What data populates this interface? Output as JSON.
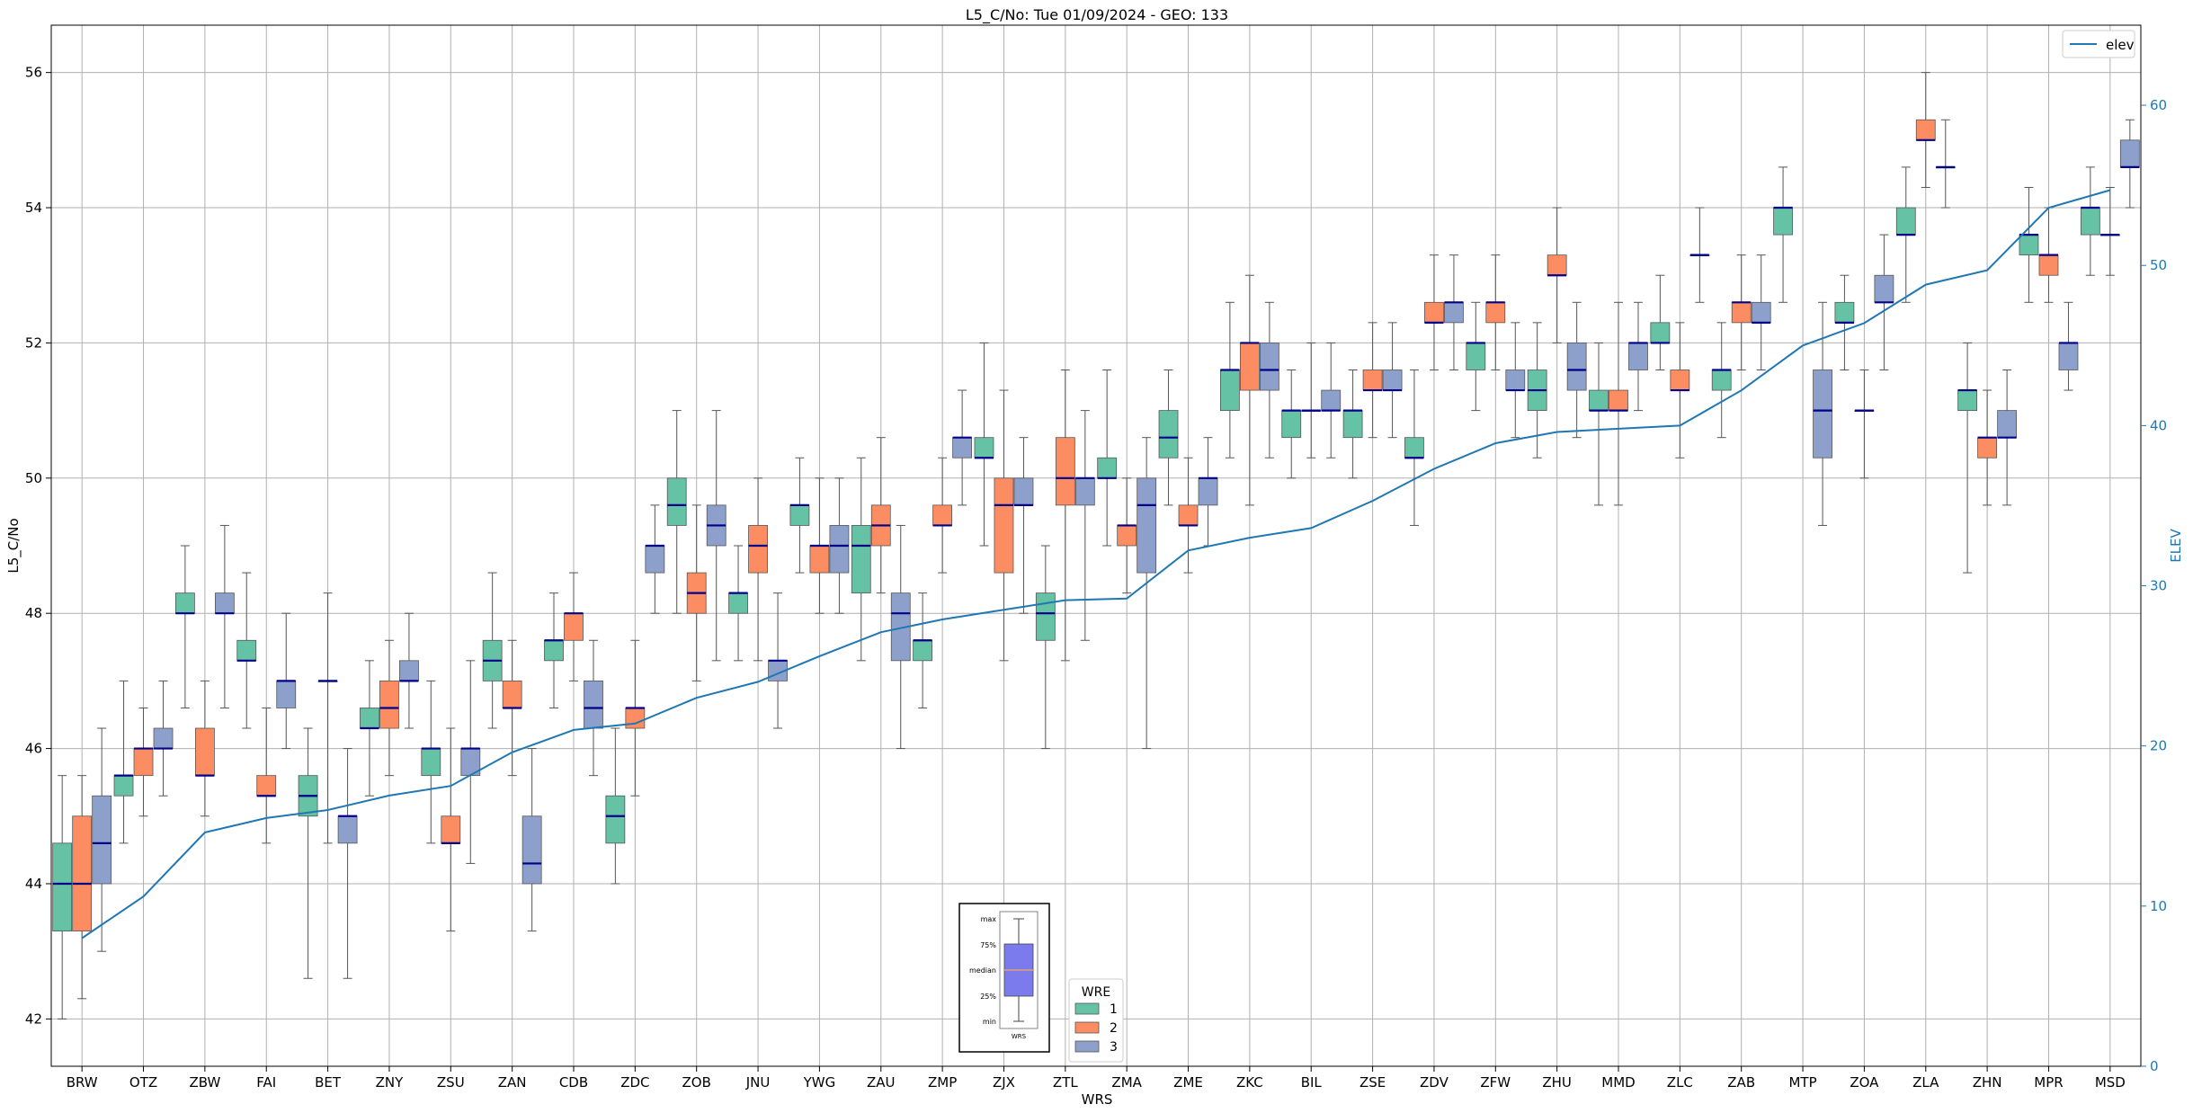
{
  "chart_data": {
    "type": "box",
    "title": "L5_C/No: Tue 01/09/2024 - GEO: 133",
    "xlabel": "WRS",
    "ylabel": "L5_C/No",
    "y2label": "ELEV",
    "ylim": [
      41.3,
      56.7
    ],
    "y2lim": [
      0,
      65
    ],
    "yticks": [
      42,
      44,
      46,
      48,
      50,
      52,
      54,
      56
    ],
    "y2ticks": [
      0,
      10,
      20,
      30,
      40,
      50,
      60
    ],
    "grid": true,
    "colors": {
      "1": "#66c2a5",
      "2": "#fc8d62",
      "3": "#8da0cb",
      "median": "#00008b",
      "elev": "#1f77b4",
      "axis2": "#1f77b4",
      "whisker": "#555555"
    },
    "categories": [
      "BRW",
      "OTZ",
      "ZBW",
      "FAI",
      "BET",
      "ZNY",
      "ZSU",
      "ZAN",
      "CDB",
      "ZDC",
      "ZOB",
      "JNU",
      "YWG",
      "ZAU",
      "ZMP",
      "ZJX",
      "ZTL",
      "ZMA",
      "ZME",
      "ZKC",
      "BIL",
      "ZSE",
      "ZDV",
      "ZFW",
      "ZHU",
      "MMD",
      "ZLC",
      "ZAB",
      "MTP",
      "ZOA",
      "ZLA",
      "ZHN",
      "MPR",
      "MSD"
    ],
    "boxes": [
      {
        "station": "BRW",
        "wre": 1,
        "min": 42.0,
        "q1": 43.3,
        "median": 44.0,
        "q3": 44.6,
        "max": 45.6
      },
      {
        "station": "BRW",
        "wre": 2,
        "min": 42.3,
        "q1": 43.3,
        "median": 44.0,
        "q3": 45.0,
        "max": 45.6
      },
      {
        "station": "BRW",
        "wre": 3,
        "min": 43.0,
        "q1": 44.0,
        "median": 44.6,
        "q3": 45.3,
        "max": 46.3
      },
      {
        "station": "OTZ",
        "wre": 1,
        "min": 44.6,
        "q1": 45.3,
        "median": 45.6,
        "q3": 45.6,
        "max": 47.0
      },
      {
        "station": "OTZ",
        "wre": 2,
        "min": 45.0,
        "q1": 45.6,
        "median": 46.0,
        "q3": 46.0,
        "max": 46.6
      },
      {
        "station": "OTZ",
        "wre": 3,
        "min": 45.3,
        "q1": 46.0,
        "median": 46.0,
        "q3": 46.3,
        "max": 47.0
      },
      {
        "station": "ZBW",
        "wre": 1,
        "min": 46.6,
        "q1": 48.0,
        "median": 48.0,
        "q3": 48.3,
        "max": 49.0
      },
      {
        "station": "ZBW",
        "wre": 2,
        "min": 45.0,
        "q1": 45.6,
        "median": 45.6,
        "q3": 46.3,
        "max": 47.0
      },
      {
        "station": "ZBW",
        "wre": 3,
        "min": 46.6,
        "q1": 48.0,
        "median": 48.0,
        "q3": 48.3,
        "max": 49.3
      },
      {
        "station": "FAI",
        "wre": 1,
        "min": 46.3,
        "q1": 47.3,
        "median": 47.3,
        "q3": 47.6,
        "max": 48.6
      },
      {
        "station": "FAI",
        "wre": 2,
        "min": 44.6,
        "q1": 45.3,
        "median": 45.3,
        "q3": 45.6,
        "max": 46.6
      },
      {
        "station": "FAI",
        "wre": 3,
        "min": 46.0,
        "q1": 46.6,
        "median": 47.0,
        "q3": 47.0,
        "max": 48.0
      },
      {
        "station": "BET",
        "wre": 1,
        "min": 42.6,
        "q1": 45.0,
        "median": 45.3,
        "q3": 45.6,
        "max": 46.3
      },
      {
        "station": "BET",
        "wre": 2,
        "min": 44.6,
        "q1": 47.0,
        "median": 47.0,
        "q3": 47.0,
        "max": 48.3
      },
      {
        "station": "BET",
        "wre": 3,
        "min": 42.6,
        "q1": 44.6,
        "median": 45.0,
        "q3": 45.0,
        "max": 46.0
      },
      {
        "station": "ZNY",
        "wre": 1,
        "min": 45.3,
        "q1": 46.3,
        "median": 46.3,
        "q3": 46.6,
        "max": 47.3
      },
      {
        "station": "ZNY",
        "wre": 2,
        "min": 45.6,
        "q1": 46.3,
        "median": 46.6,
        "q3": 47.0,
        "max": 47.6
      },
      {
        "station": "ZNY",
        "wre": 3,
        "min": 46.3,
        "q1": 47.0,
        "median": 47.0,
        "q3": 47.3,
        "max": 48.0
      },
      {
        "station": "ZSU",
        "wre": 1,
        "min": 44.6,
        "q1": 45.6,
        "median": 46.0,
        "q3": 46.0,
        "max": 47.0
      },
      {
        "station": "ZSU",
        "wre": 2,
        "min": 43.3,
        "q1": 44.6,
        "median": 44.6,
        "q3": 45.0,
        "max": 46.3
      },
      {
        "station": "ZSU",
        "wre": 3,
        "min": 44.3,
        "q1": 45.6,
        "median": 46.0,
        "q3": 46.0,
        "max": 47.3
      },
      {
        "station": "ZAN",
        "wre": 1,
        "min": 46.3,
        "q1": 47.0,
        "median": 47.3,
        "q3": 47.6,
        "max": 48.6
      },
      {
        "station": "ZAN",
        "wre": 2,
        "min": 45.6,
        "q1": 46.6,
        "median": 46.6,
        "q3": 47.0,
        "max": 47.6
      },
      {
        "station": "ZAN",
        "wre": 3,
        "min": 43.3,
        "q1": 44.0,
        "median": 44.3,
        "q3": 45.0,
        "max": 46.0
      },
      {
        "station": "CDB",
        "wre": 1,
        "min": 46.6,
        "q1": 47.3,
        "median": 47.6,
        "q3": 47.6,
        "max": 48.3
      },
      {
        "station": "CDB",
        "wre": 2,
        "min": 47.0,
        "q1": 47.6,
        "median": 48.0,
        "q3": 48.0,
        "max": 48.6
      },
      {
        "station": "CDB",
        "wre": 3,
        "min": 45.6,
        "q1": 46.3,
        "median": 46.6,
        "q3": 47.0,
        "max": 47.6
      },
      {
        "station": "ZDC",
        "wre": 1,
        "min": 44.0,
        "q1": 44.6,
        "median": 45.0,
        "q3": 45.3,
        "max": 46.3
      },
      {
        "station": "ZDC",
        "wre": 2,
        "min": 45.3,
        "q1": 46.3,
        "median": 46.6,
        "q3": 46.6,
        "max": 47.6
      },
      {
        "station": "ZDC",
        "wre": 3,
        "min": 48.0,
        "q1": 48.6,
        "median": 49.0,
        "q3": 49.0,
        "max": 49.6
      },
      {
        "station": "ZOB",
        "wre": 1,
        "min": 48.0,
        "q1": 49.3,
        "median": 49.6,
        "q3": 50.0,
        "max": 51.0
      },
      {
        "station": "ZOB",
        "wre": 2,
        "min": 47.0,
        "q1": 48.0,
        "median": 48.3,
        "q3": 48.6,
        "max": 49.6
      },
      {
        "station": "ZOB",
        "wre": 3,
        "min": 47.3,
        "q1": 49.0,
        "median": 49.3,
        "q3": 49.6,
        "max": 51.0
      },
      {
        "station": "JNU",
        "wre": 1,
        "min": 47.3,
        "q1": 48.0,
        "median": 48.3,
        "q3": 48.3,
        "max": 49.0
      },
      {
        "station": "JNU",
        "wre": 2,
        "min": 47.3,
        "q1": 48.6,
        "median": 49.0,
        "q3": 49.3,
        "max": 50.0
      },
      {
        "station": "JNU",
        "wre": 3,
        "min": 46.3,
        "q1": 47.0,
        "median": 47.3,
        "q3": 47.3,
        "max": 48.3
      },
      {
        "station": "YWG",
        "wre": 1,
        "min": 48.6,
        "q1": 49.3,
        "median": 49.6,
        "q3": 49.6,
        "max": 50.3
      },
      {
        "station": "YWG",
        "wre": 2,
        "min": 48.0,
        "q1": 48.6,
        "median": 49.0,
        "q3": 49.0,
        "max": 50.0
      },
      {
        "station": "YWG",
        "wre": 3,
        "min": 48.0,
        "q1": 48.6,
        "median": 49.0,
        "q3": 49.3,
        "max": 50.0
      },
      {
        "station": "ZAU",
        "wre": 1,
        "min": 47.3,
        "q1": 48.3,
        "median": 49.0,
        "q3": 49.3,
        "max": 50.3
      },
      {
        "station": "ZAU",
        "wre": 2,
        "min": 48.3,
        "q1": 49.0,
        "median": 49.3,
        "q3": 49.6,
        "max": 50.6
      },
      {
        "station": "ZAU",
        "wre": 3,
        "min": 46.0,
        "q1": 47.3,
        "median": 48.0,
        "q3": 48.3,
        "max": 49.3
      },
      {
        "station": "ZMP",
        "wre": 1,
        "min": 46.6,
        "q1": 47.3,
        "median": 47.6,
        "q3": 47.6,
        "max": 48.3
      },
      {
        "station": "ZMP",
        "wre": 2,
        "min": 48.6,
        "q1": 49.3,
        "median": 49.3,
        "q3": 49.6,
        "max": 50.3
      },
      {
        "station": "ZMP",
        "wre": 3,
        "min": 49.6,
        "q1": 50.3,
        "median": 50.6,
        "q3": 50.6,
        "max": 51.3
      },
      {
        "station": "ZJX",
        "wre": 1,
        "min": 49.0,
        "q1": 50.3,
        "median": 50.3,
        "q3": 50.6,
        "max": 52.0
      },
      {
        "station": "ZJX",
        "wre": 2,
        "min": 47.3,
        "q1": 48.6,
        "median": 49.6,
        "q3": 50.0,
        "max": 51.3
      },
      {
        "station": "ZJX",
        "wre": 3,
        "min": 48.0,
        "q1": 49.6,
        "median": 49.6,
        "q3": 50.0,
        "max": 50.6
      },
      {
        "station": "ZTL",
        "wre": 1,
        "min": 46.0,
        "q1": 47.6,
        "median": 48.0,
        "q3": 48.3,
        "max": 49.0
      },
      {
        "station": "ZTL",
        "wre": 2,
        "min": 47.3,
        "q1": 49.6,
        "median": 50.0,
        "q3": 50.6,
        "max": 51.6
      },
      {
        "station": "ZTL",
        "wre": 3,
        "min": 47.6,
        "q1": 49.6,
        "median": 50.0,
        "q3": 50.0,
        "max": 51.0
      },
      {
        "station": "ZMA",
        "wre": 1,
        "min": 49.0,
        "q1": 50.0,
        "median": 50.0,
        "q3": 50.3,
        "max": 51.6
      },
      {
        "station": "ZMA",
        "wre": 2,
        "min": 48.3,
        "q1": 49.0,
        "median": 49.3,
        "q3": 49.3,
        "max": 50.0
      },
      {
        "station": "ZMA",
        "wre": 3,
        "min": 46.0,
        "q1": 48.6,
        "median": 49.6,
        "q3": 50.0,
        "max": 50.6
      },
      {
        "station": "ZME",
        "wre": 1,
        "min": 49.6,
        "q1": 50.3,
        "median": 50.6,
        "q3": 51.0,
        "max": 51.6
      },
      {
        "station": "ZME",
        "wre": 2,
        "min": 48.6,
        "q1": 49.3,
        "median": 49.3,
        "q3": 49.6,
        "max": 50.3
      },
      {
        "station": "ZME",
        "wre": 3,
        "min": 49.0,
        "q1": 49.6,
        "median": 50.0,
        "q3": 50.0,
        "max": 50.6
      },
      {
        "station": "ZKC",
        "wre": 1,
        "min": 50.3,
        "q1": 51.0,
        "median": 51.6,
        "q3": 51.6,
        "max": 52.6
      },
      {
        "station": "ZKC",
        "wre": 2,
        "min": 49.6,
        "q1": 51.3,
        "median": 52.0,
        "q3": 52.0,
        "max": 53.0
      },
      {
        "station": "ZKC",
        "wre": 3,
        "min": 50.3,
        "q1": 51.3,
        "median": 51.6,
        "q3": 52.0,
        "max": 52.6
      },
      {
        "station": "BIL",
        "wre": 1,
        "min": 50.0,
        "q1": 50.6,
        "median": 51.0,
        "q3": 51.0,
        "max": 51.6
      },
      {
        "station": "BIL",
        "wre": 2,
        "min": 50.3,
        "q1": 51.0,
        "median": 51.0,
        "q3": 51.0,
        "max": 52.0
      },
      {
        "station": "BIL",
        "wre": 3,
        "min": 50.3,
        "q1": 51.0,
        "median": 51.0,
        "q3": 51.3,
        "max": 52.0
      },
      {
        "station": "ZSE",
        "wre": 1,
        "min": 50.0,
        "q1": 50.6,
        "median": 51.0,
        "q3": 51.0,
        "max": 51.6
      },
      {
        "station": "ZSE",
        "wre": 2,
        "min": 50.6,
        "q1": 51.3,
        "median": 51.3,
        "q3": 51.6,
        "max": 52.3
      },
      {
        "station": "ZSE",
        "wre": 3,
        "min": 50.6,
        "q1": 51.3,
        "median": 51.3,
        "q3": 51.6,
        "max": 52.3
      },
      {
        "station": "ZDV",
        "wre": 1,
        "min": 49.3,
        "q1": 50.3,
        "median": 50.3,
        "q3": 50.6,
        "max": 51.6
      },
      {
        "station": "ZDV",
        "wre": 2,
        "min": 51.6,
        "q1": 52.3,
        "median": 52.3,
        "q3": 52.6,
        "max": 53.3
      },
      {
        "station": "ZDV",
        "wre": 3,
        "min": 51.6,
        "q1": 52.3,
        "median": 52.6,
        "q3": 52.6,
        "max": 53.3
      },
      {
        "station": "ZFW",
        "wre": 1,
        "min": 51.0,
        "q1": 51.6,
        "median": 52.0,
        "q3": 52.0,
        "max": 52.6
      },
      {
        "station": "ZFW",
        "wre": 2,
        "min": 51.6,
        "q1": 52.3,
        "median": 52.6,
        "q3": 52.6,
        "max": 53.3
      },
      {
        "station": "ZFW",
        "wre": 3,
        "min": 50.6,
        "q1": 51.3,
        "median": 51.3,
        "q3": 51.6,
        "max": 52.3
      },
      {
        "station": "ZHU",
        "wre": 1,
        "min": 50.3,
        "q1": 51.0,
        "median": 51.3,
        "q3": 51.6,
        "max": 52.3
      },
      {
        "station": "ZHU",
        "wre": 2,
        "min": 52.0,
        "q1": 53.0,
        "median": 53.0,
        "q3": 53.3,
        "max": 54.0
      },
      {
        "station": "ZHU",
        "wre": 3,
        "min": 50.6,
        "q1": 51.3,
        "median": 51.6,
        "q3": 52.0,
        "max": 52.6
      },
      {
        "station": "MMD",
        "wre": 1,
        "min": 49.6,
        "q1": 51.0,
        "median": 51.0,
        "q3": 51.3,
        "max": 52.0
      },
      {
        "station": "MMD",
        "wre": 2,
        "min": 49.6,
        "q1": 51.0,
        "median": 51.0,
        "q3": 51.3,
        "max": 52.6
      },
      {
        "station": "MMD",
        "wre": 3,
        "min": 51.0,
        "q1": 51.6,
        "median": 52.0,
        "q3": 52.0,
        "max": 52.6
      },
      {
        "station": "ZLC",
        "wre": 1,
        "min": 51.6,
        "q1": 52.0,
        "median": 52.0,
        "q3": 52.3,
        "max": 53.0
      },
      {
        "station": "ZLC",
        "wre": 2,
        "min": 50.3,
        "q1": 51.3,
        "median": 51.3,
        "q3": 51.6,
        "max": 52.3
      },
      {
        "station": "ZLC",
        "wre": 3,
        "min": 52.6,
        "q1": 53.3,
        "median": 53.3,
        "q3": 53.3,
        "max": 54.0
      },
      {
        "station": "ZAB",
        "wre": 1,
        "min": 50.6,
        "q1": 51.3,
        "median": 51.6,
        "q3": 51.6,
        "max": 52.3
      },
      {
        "station": "ZAB",
        "wre": 2,
        "min": 51.6,
        "q1": 52.3,
        "median": 52.6,
        "q3": 52.6,
        "max": 53.3
      },
      {
        "station": "ZAB",
        "wre": 3,
        "min": 51.6,
        "q1": 52.3,
        "median": 52.3,
        "q3": 52.6,
        "max": 53.3
      },
      {
        "station": "MTP",
        "wre": 1,
        "min": 52.6,
        "q1": 53.6,
        "median": 54.0,
        "q3": 54.0,
        "max": 54.6
      },
      {
        "station": "MTP",
        "wre": 3,
        "min": 49.3,
        "q1": 50.3,
        "median": 51.0,
        "q3": 51.6,
        "max": 52.6
      },
      {
        "station": "ZOA",
        "wre": 1,
        "min": 51.6,
        "q1": 52.3,
        "median": 52.3,
        "q3": 52.6,
        "max": 53.0
      },
      {
        "station": "ZOA",
        "wre": 2,
        "min": 50.0,
        "q1": 51.0,
        "median": 51.0,
        "q3": 51.0,
        "max": 51.6
      },
      {
        "station": "ZOA",
        "wre": 3,
        "min": 51.6,
        "q1": 52.6,
        "median": 52.6,
        "q3": 53.0,
        "max": 53.6
      },
      {
        "station": "ZLA",
        "wre": 1,
        "min": 52.6,
        "q1": 53.6,
        "median": 53.6,
        "q3": 54.0,
        "max": 54.6
      },
      {
        "station": "ZLA",
        "wre": 2,
        "min": 54.3,
        "q1": 55.0,
        "median": 55.0,
        "q3": 55.3,
        "max": 56.0
      },
      {
        "station": "ZLA",
        "wre": 3,
        "min": 54.0,
        "q1": 54.6,
        "median": 54.6,
        "q3": 54.6,
        "max": 55.3
      },
      {
        "station": "ZHN",
        "wre": 1,
        "min": 48.6,
        "q1": 51.0,
        "median": 51.3,
        "q3": 51.3,
        "max": 52.0
      },
      {
        "station": "ZHN",
        "wre": 2,
        "min": 49.6,
        "q1": 50.3,
        "median": 50.6,
        "q3": 50.6,
        "max": 51.3
      },
      {
        "station": "ZHN",
        "wre": 3,
        "min": 49.6,
        "q1": 50.6,
        "median": 50.6,
        "q3": 51.0,
        "max": 51.6
      },
      {
        "station": "MPR",
        "wre": 1,
        "min": 52.6,
        "q1": 53.3,
        "median": 53.6,
        "q3": 53.6,
        "max": 54.3
      },
      {
        "station": "MPR",
        "wre": 2,
        "min": 52.6,
        "q1": 53.0,
        "median": 53.3,
        "q3": 53.3,
        "max": 54.0
      },
      {
        "station": "MPR",
        "wre": 3,
        "min": 51.3,
        "q1": 51.6,
        "median": 52.0,
        "q3": 52.0,
        "max": 52.6
      },
      {
        "station": "MSD",
        "wre": 1,
        "min": 53.0,
        "q1": 53.6,
        "median": 54.0,
        "q3": 54.0,
        "max": 54.6
      },
      {
        "station": "MSD",
        "wre": 2,
        "min": 53.0,
        "q1": 53.6,
        "median": 53.6,
        "q3": 53.6,
        "max": 54.3
      },
      {
        "station": "MSD",
        "wre": 3,
        "min": 54.0,
        "q1": 54.6,
        "median": 54.6,
        "q3": 55.0,
        "max": 55.3
      }
    ],
    "elev_series": {
      "name": "elev",
      "axis": "right",
      "values": [
        8.0,
        10.6,
        14.6,
        15.5,
        16.0,
        16.9,
        17.5,
        19.6,
        21.0,
        21.4,
        23.0,
        24.0,
        25.6,
        27.1,
        27.9,
        28.5,
        29.1,
        29.2,
        32.2,
        33.0,
        33.6,
        35.3,
        37.3,
        38.9,
        39.6,
        39.8,
        40.0,
        42.2,
        45.0,
        46.4,
        48.8,
        49.7,
        53.6,
        54.7
      ]
    },
    "legends": {
      "elev": {
        "label": "elev",
        "placement": "top-right"
      },
      "wre": {
        "title": "WRE",
        "entries": [
          "1",
          "2",
          "3"
        ],
        "placement": "bottom-center"
      }
    },
    "inset": {
      "labels": [
        "max",
        "75%",
        "median",
        "25%",
        "min"
      ],
      "xlabel": "WRS",
      "box_color": "#7b7bee"
    }
  }
}
